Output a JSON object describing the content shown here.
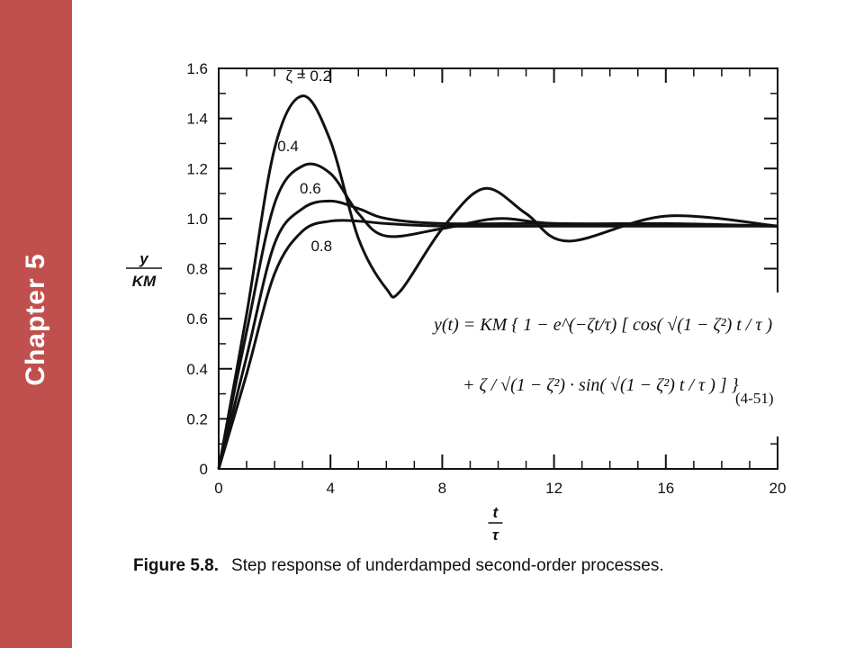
{
  "sidebar": {
    "label": "Chapter 5",
    "color": "#c0504d"
  },
  "caption": {
    "figure": "Figure 5.8.",
    "text": "Step response of underdamped second-order processes."
  },
  "formula": {
    "line1": "y(t) = KM { 1 − e^(−ζt/τ) [ cos( √(1 − ζ²) t / τ )",
    "line2": "+ ζ / √(1 − ζ²) · sin( √(1 − ζ²) t / τ ) ] }",
    "equation_number": "(4-51)"
  },
  "chart_data": {
    "type": "line",
    "title": "",
    "xlabel": "t / τ",
    "ylabel": "y / KM",
    "xlim": [
      0,
      20
    ],
    "ylim": [
      0,
      1.6
    ],
    "xticks": [
      0,
      4,
      8,
      12,
      16,
      20
    ],
    "yticks": [
      0,
      0.2,
      0.4,
      0.6,
      0.8,
      1.0,
      1.2,
      1.4,
      1.6
    ],
    "ytick_labels": [
      "0",
      "0.2",
      "0.4",
      "0.6",
      "0.8",
      "1.0",
      "1.2",
      "1.4",
      "1.6"
    ],
    "grid": false,
    "series": [
      {
        "name": "ζ = 0.2",
        "zeta": 0.2,
        "x": [
          0,
          1,
          2,
          3,
          4,
          5,
          6,
          6.5,
          8,
          9.5,
          11,
          12.5,
          16,
          20
        ],
        "y": [
          0,
          0.62,
          1.28,
          1.49,
          1.31,
          0.92,
          0.72,
          0.71,
          0.96,
          1.12,
          1.02,
          0.91,
          1.01,
          0.97
        ]
      },
      {
        "name": "0.4",
        "zeta": 0.4,
        "x": [
          0,
          1,
          2,
          3,
          4,
          5,
          6,
          8,
          10,
          12,
          16,
          20
        ],
        "y": [
          0,
          0.55,
          1.06,
          1.21,
          1.18,
          1.02,
          0.93,
          0.96,
          1.0,
          0.98,
          0.98,
          0.97
        ]
      },
      {
        "name": "0.6",
        "zeta": 0.6,
        "x": [
          0,
          1,
          2,
          3,
          4,
          5,
          6,
          8,
          12,
          20
        ],
        "y": [
          0,
          0.45,
          0.9,
          1.04,
          1.07,
          1.04,
          1.0,
          0.98,
          0.98,
          0.97
        ]
      },
      {
        "name": "0.8",
        "zeta": 0.8,
        "x": [
          0,
          1,
          2,
          3,
          4,
          5,
          6,
          8,
          12,
          20
        ],
        "y": [
          0,
          0.38,
          0.78,
          0.95,
          0.99,
          0.99,
          0.98,
          0.97,
          0.97,
          0.97
        ]
      }
    ]
  }
}
